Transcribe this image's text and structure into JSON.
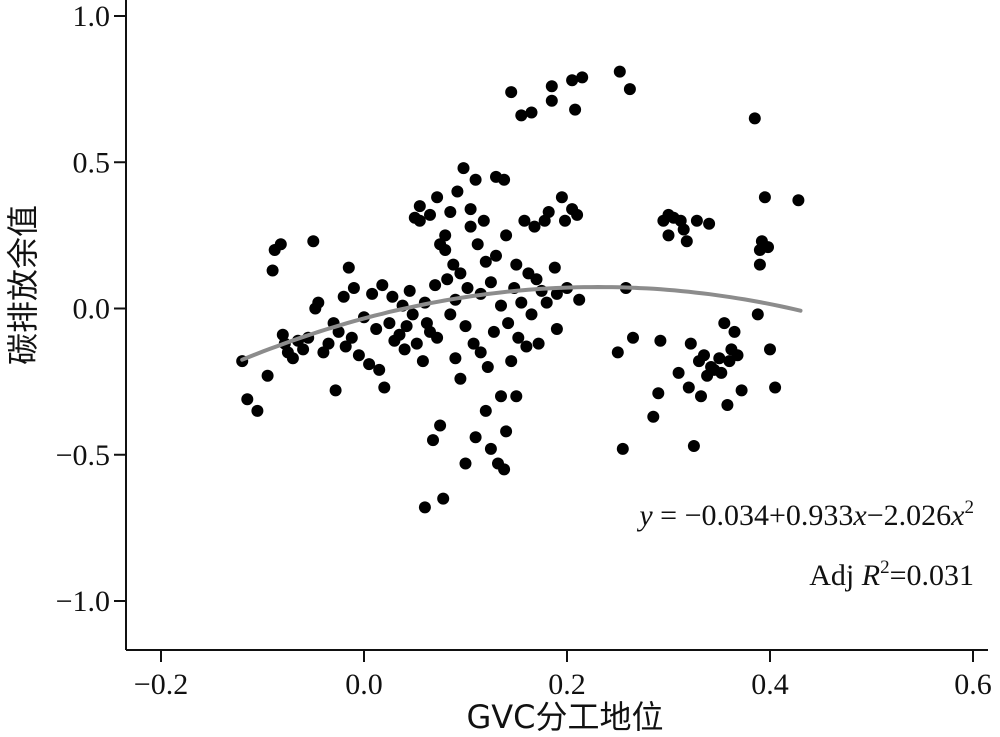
{
  "chart_data": {
    "type": "scatter",
    "xlabel": "GVC分工地位",
    "ylabel": "碳排放余值",
    "xlim": [
      -0.235,
      0.605
    ],
    "ylim": [
      -1.1,
      1.03
    ],
    "x_ticks": [
      -0.2,
      0.0,
      0.2,
      0.4,
      0.6
    ],
    "x_tick_labels": [
      "−0.2",
      "0.0",
      "0.2",
      "0.4",
      "0.6"
    ],
    "y_ticks": [
      -1.0,
      -0.5,
      0.0,
      0.5,
      1.0
    ],
    "y_tick_labels": [
      "−1.0",
      "−0.5",
      "0.0",
      "0.5",
      "1.0"
    ],
    "grid": false,
    "point_color": "#000000",
    "fit_color": "#8c8c8c",
    "fit": {
      "intercept": -0.034,
      "b1": 0.933,
      "b2": -2.026,
      "x_range": [
        -0.12,
        0.43
      ],
      "equation": {
        "y": "y",
        "eq": " = −0.034+0.933",
        "x1": "x",
        "mid": "−2.026",
        "x2": "x",
        "sup": "2"
      },
      "adj_r2": {
        "prefix": "Adj ",
        "r": "R",
        "sup": "2",
        "value": "=0.031"
      }
    },
    "points": [
      [
        -0.12,
        -0.18
      ],
      [
        -0.115,
        -0.31
      ],
      [
        -0.105,
        -0.35
      ],
      [
        -0.095,
        -0.23
      ],
      [
        -0.09,
        0.13
      ],
      [
        -0.088,
        0.2
      ],
      [
        -0.082,
        0.22
      ],
      [
        -0.08,
        -0.09
      ],
      [
        -0.078,
        -0.12
      ],
      [
        -0.075,
        -0.15
      ],
      [
        -0.07,
        -0.17
      ],
      [
        -0.065,
        -0.11
      ],
      [
        -0.06,
        -0.14
      ],
      [
        -0.055,
        -0.1
      ],
      [
        -0.05,
        0.23
      ],
      [
        -0.048,
        0.0
      ],
      [
        -0.045,
        0.02
      ],
      [
        -0.04,
        -0.15
      ],
      [
        -0.035,
        -0.12
      ],
      [
        -0.03,
        -0.05
      ],
      [
        -0.028,
        -0.28
      ],
      [
        -0.025,
        -0.08
      ],
      [
        -0.02,
        0.04
      ],
      [
        -0.018,
        -0.13
      ],
      [
        -0.015,
        0.14
      ],
      [
        -0.012,
        -0.1
      ],
      [
        -0.01,
        0.07
      ],
      [
        -0.005,
        -0.16
      ],
      [
        0.0,
        -0.03
      ],
      [
        0.005,
        -0.19
      ],
      [
        0.008,
        0.05
      ],
      [
        0.012,
        -0.07
      ],
      [
        0.015,
        -0.21
      ],
      [
        0.018,
        0.08
      ],
      [
        0.02,
        -0.27
      ],
      [
        0.025,
        -0.05
      ],
      [
        0.028,
        0.04
      ],
      [
        0.03,
        -0.11
      ],
      [
        0.035,
        -0.09
      ],
      [
        0.038,
        0.01
      ],
      [
        0.04,
        -0.14
      ],
      [
        0.042,
        -0.06
      ],
      [
        0.045,
        0.06
      ],
      [
        0.048,
        -0.02
      ],
      [
        0.05,
        0.31
      ],
      [
        0.052,
        -0.12
      ],
      [
        0.055,
        0.35
      ],
      [
        0.055,
        0.3
      ],
      [
        0.058,
        -0.18
      ],
      [
        0.06,
        -0.68
      ],
      [
        0.06,
        0.02
      ],
      [
        0.062,
        -0.05
      ],
      [
        0.065,
        -0.08
      ],
      [
        0.065,
        0.32
      ],
      [
        0.068,
        -0.45
      ],
      [
        0.07,
        0.08
      ],
      [
        0.072,
        -0.1
      ],
      [
        0.072,
        0.38
      ],
      [
        0.075,
        0.22
      ],
      [
        0.075,
        -0.4
      ],
      [
        0.078,
        -0.65
      ],
      [
        0.08,
        0.2
      ],
      [
        0.08,
        0.25
      ],
      [
        0.082,
        0.1
      ],
      [
        0.085,
        0.33
      ],
      [
        0.085,
        -0.02
      ],
      [
        0.088,
        0.15
      ],
      [
        0.09,
        -0.17
      ],
      [
        0.09,
        0.03
      ],
      [
        0.092,
        0.4
      ],
      [
        0.095,
        0.12
      ],
      [
        0.095,
        -0.24
      ],
      [
        0.098,
        0.48
      ],
      [
        0.1,
        -0.53
      ],
      [
        0.1,
        -0.06
      ],
      [
        0.102,
        0.07
      ],
      [
        0.105,
        0.34
      ],
      [
        0.105,
        0.28
      ],
      [
        0.108,
        -0.12
      ],
      [
        0.11,
        0.44
      ],
      [
        0.11,
        -0.44
      ],
      [
        0.112,
        0.22
      ],
      [
        0.115,
        0.05
      ],
      [
        0.115,
        -0.15
      ],
      [
        0.118,
        0.3
      ],
      [
        0.12,
        0.16
      ],
      [
        0.12,
        -0.35
      ],
      [
        0.122,
        -0.2
      ],
      [
        0.125,
        0.09
      ],
      [
        0.125,
        -0.48
      ],
      [
        0.128,
        -0.08
      ],
      [
        0.13,
        0.45
      ],
      [
        0.13,
        0.18
      ],
      [
        0.132,
        -0.53
      ],
      [
        0.135,
        0.01
      ],
      [
        0.135,
        -0.3
      ],
      [
        0.138,
        0.44
      ],
      [
        0.138,
        -0.55
      ],
      [
        0.14,
        0.25
      ],
      [
        0.14,
        -0.42
      ],
      [
        0.142,
        -0.05
      ],
      [
        0.145,
        0.74
      ],
      [
        0.145,
        -0.18
      ],
      [
        0.148,
        0.07
      ],
      [
        0.15,
        0.15
      ],
      [
        0.15,
        -0.3
      ],
      [
        0.152,
        -0.1
      ],
      [
        0.155,
        0.66
      ],
      [
        0.155,
        0.02
      ],
      [
        0.158,
        0.3
      ],
      [
        0.16,
        -0.13
      ],
      [
        0.162,
        0.12
      ],
      [
        0.165,
        0.67
      ],
      [
        0.165,
        -0.02
      ],
      [
        0.168,
        0.28
      ],
      [
        0.17,
        0.1
      ],
      [
        0.172,
        -0.12
      ],
      [
        0.175,
        0.06
      ],
      [
        0.178,
        0.3
      ],
      [
        0.18,
        0.02
      ],
      [
        0.182,
        0.33
      ],
      [
        0.185,
        0.76
      ],
      [
        0.185,
        0.71
      ],
      [
        0.188,
        0.14
      ],
      [
        0.19,
        0.05
      ],
      [
        0.19,
        -0.07
      ],
      [
        0.195,
        0.38
      ],
      [
        0.198,
        0.3
      ],
      [
        0.2,
        0.07
      ],
      [
        0.205,
        0.78
      ],
      [
        0.205,
        0.34
      ],
      [
        0.208,
        0.68
      ],
      [
        0.21,
        0.32
      ],
      [
        0.212,
        0.03
      ],
      [
        0.215,
        0.79
      ],
      [
        0.25,
        -0.15
      ],
      [
        0.252,
        0.81
      ],
      [
        0.255,
        -0.48
      ],
      [
        0.258,
        0.07
      ],
      [
        0.262,
        0.75
      ],
      [
        0.265,
        -0.1
      ],
      [
        0.285,
        -0.37
      ],
      [
        0.29,
        -0.29
      ],
      [
        0.292,
        -0.11
      ],
      [
        0.295,
        0.3
      ],
      [
        0.3,
        0.32
      ],
      [
        0.3,
        0.25
      ],
      [
        0.305,
        0.31
      ],
      [
        0.31,
        -0.22
      ],
      [
        0.312,
        0.3
      ],
      [
        0.315,
        0.27
      ],
      [
        0.318,
        0.23
      ],
      [
        0.32,
        -0.27
      ],
      [
        0.322,
        -0.12
      ],
      [
        0.325,
        -0.47
      ],
      [
        0.328,
        0.3
      ],
      [
        0.33,
        -0.18
      ],
      [
        0.332,
        -0.3
      ],
      [
        0.335,
        -0.16
      ],
      [
        0.338,
        -0.23
      ],
      [
        0.34,
        0.29
      ],
      [
        0.342,
        -0.2
      ],
      [
        0.345,
        -0.21
      ],
      [
        0.35,
        -0.17
      ],
      [
        0.352,
        -0.22
      ],
      [
        0.355,
        -0.05
      ],
      [
        0.358,
        -0.33
      ],
      [
        0.36,
        -0.18
      ],
      [
        0.362,
        -0.14
      ],
      [
        0.365,
        -0.08
      ],
      [
        0.368,
        -0.16
      ],
      [
        0.372,
        -0.28
      ],
      [
        0.385,
        0.65
      ],
      [
        0.388,
        -0.02
      ],
      [
        0.39,
        0.15
      ],
      [
        0.39,
        0.2
      ],
      [
        0.392,
        0.23
      ],
      [
        0.395,
        0.38
      ],
      [
        0.398,
        0.21
      ],
      [
        0.4,
        -0.14
      ],
      [
        0.405,
        -0.27
      ],
      [
        0.428,
        0.37
      ]
    ]
  }
}
